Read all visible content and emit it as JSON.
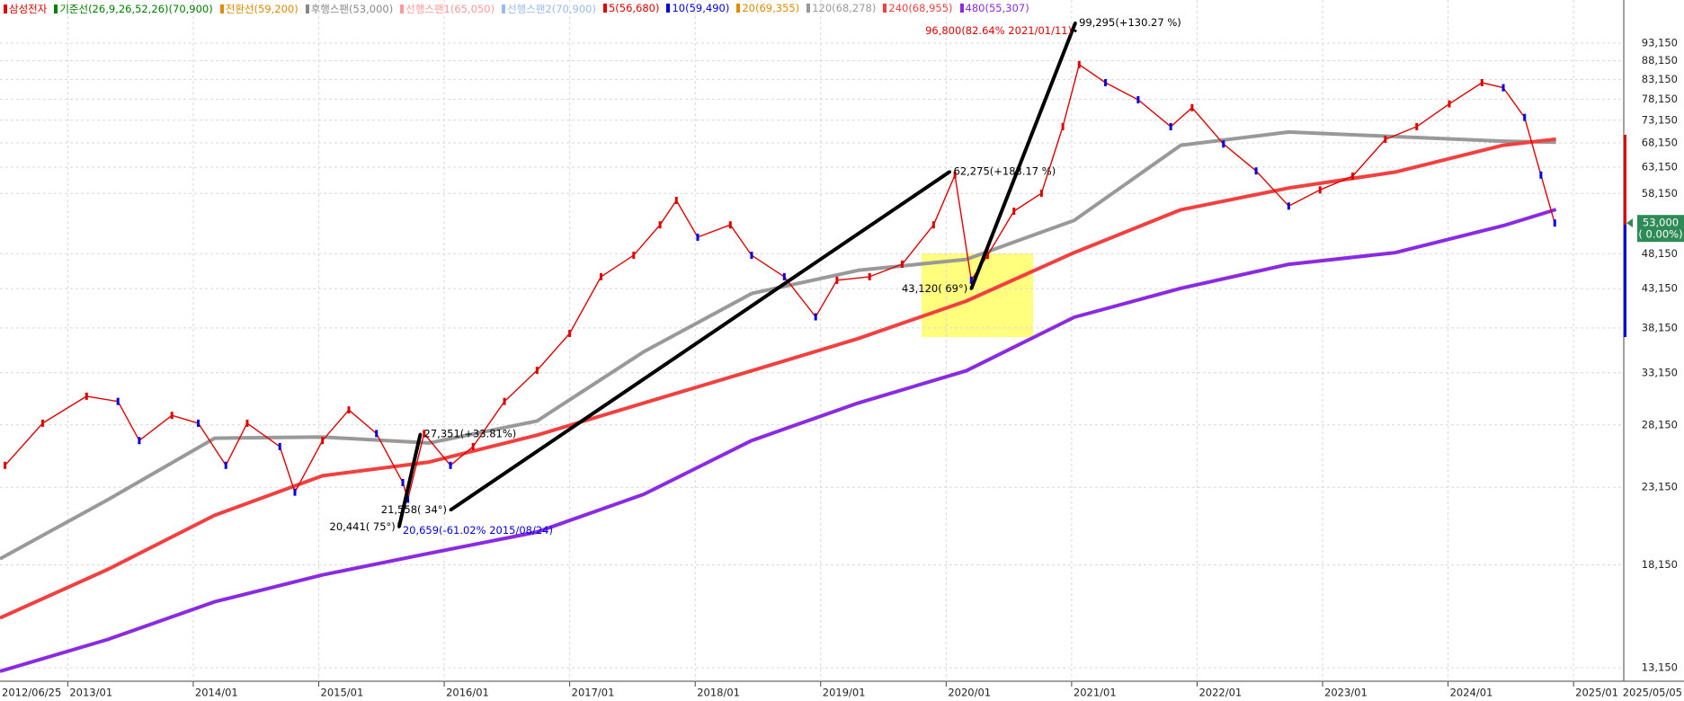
{
  "chart_data": {
    "type": "line",
    "log_scale": true,
    "grid": true,
    "xlim": [
      2012.46,
      2025.4
    ],
    "ylim": [
      12605,
      106640
    ],
    "start_label": "2012/06/25",
    "end_label": "2025/05/05",
    "xticks": [
      {
        "value": 2013,
        "label": "2013/01"
      },
      {
        "value": 2014,
        "label": "2014/01"
      },
      {
        "value": 2015,
        "label": "2015/01"
      },
      {
        "value": 2016,
        "label": "2016/01"
      },
      {
        "value": 2017,
        "label": "2017/01"
      },
      {
        "value": 2018,
        "label": "2018/01"
      },
      {
        "value": 2019,
        "label": "2019/01"
      },
      {
        "value": 2020,
        "label": "2020/01"
      },
      {
        "value": 2021,
        "label": "2021/01"
      },
      {
        "value": 2022,
        "label": "2022/01"
      },
      {
        "value": 2023,
        "label": "2023/01"
      },
      {
        "value": 2024,
        "label": "2024/01"
      },
      {
        "value": 2025,
        "label": "2025/01"
      }
    ],
    "yticks": [
      {
        "value": 13150,
        "label": "13,150"
      },
      {
        "value": 18150,
        "label": "18,150"
      },
      {
        "value": 23150,
        "label": "23,150"
      },
      {
        "value": 28150,
        "label": "28,150"
      },
      {
        "value": 33150,
        "label": "33,150"
      },
      {
        "value": 38150,
        "label": "38,150"
      },
      {
        "value": 43150,
        "label": "43,150"
      },
      {
        "value": 48150,
        "label": "48,150"
      },
      {
        "value": 58150,
        "label": "58,150"
      },
      {
        "value": 63150,
        "label": "63,150"
      },
      {
        "value": 68150,
        "label": "68,150"
      },
      {
        "value": 73150,
        "label": "73,150"
      },
      {
        "value": 78150,
        "label": "78,150"
      },
      {
        "value": 83150,
        "label": "83,150"
      },
      {
        "value": 88150,
        "label": "88,150"
      },
      {
        "value": 93150,
        "label": "93,150"
      }
    ],
    "current_price": {
      "value": 53000,
      "label": "53,000",
      "change": "( 0.00%)"
    },
    "series": [
      {
        "name": "삼성전자",
        "color": "#e00000",
        "x": [
          2012.5,
          2012.8,
          2013.15,
          2013.4,
          2013.57,
          2013.83,
          2014.04,
          2014.26,
          2014.43,
          2014.69,
          2014.81,
          2015.03,
          2015.24,
          2015.46,
          2015.67,
          2015.71,
          2015.84,
          2016.05,
          2016.23,
          2016.48,
          2016.74,
          2017.0,
          2017.25,
          2017.51,
          2017.72,
          2017.85,
          2018.02,
          2018.28,
          2018.45,
          2018.71,
          2018.96,
          2019.13,
          2019.39,
          2019.65,
          2019.9,
          2020.07,
          2020.2,
          2020.33,
          2020.54,
          2020.76,
          2020.93,
          2021.06,
          2021.27,
          2021.53,
          2021.79,
          2021.96,
          2022.21,
          2022.47,
          2022.73,
          2022.98,
          2023.24,
          2023.5,
          2023.75,
          2024.01,
          2024.27,
          2024.44,
          2024.61,
          2024.74,
          2024.85
        ],
        "values": [
          24800,
          28300,
          30800,
          30300,
          26800,
          29000,
          28300,
          24800,
          28300,
          26300,
          22800,
          26800,
          29500,
          27400,
          23500,
          22300,
          27400,
          24800,
          26300,
          30300,
          33400,
          37500,
          44800,
          47900,
          52700,
          56900,
          50700,
          52700,
          47900,
          44800,
          39500,
          44300,
          44800,
          46600,
          52700,
          61600,
          44300,
          47900,
          55000,
          58200,
          71700,
          87100,
          82300,
          78000,
          71700,
          76100,
          67900,
          62400,
          55900,
          58800,
          61400,
          68900,
          71700,
          77000,
          82300,
          81000,
          73800,
          61600,
          53000
        ]
      },
      {
        "name": "기준선(26,9,26,52,26)(70,900)",
        "color": "#008000"
      },
      {
        "name": "전환선(59,200)",
        "color": "#e08a00"
      },
      {
        "name": "후행스팬(53,000)",
        "color": "#888888"
      },
      {
        "name": "선행스팬1(65,050)",
        "color": "#ff9999"
      },
      {
        "name": "선행스팬2(70,900)",
        "color": "#99bbee"
      },
      {
        "name": "5(56,680)",
        "color": "#e00000"
      },
      {
        "name": "10(59,490)",
        "color": "#0000e0"
      },
      {
        "name": "20(69,355)",
        "color": "#e08a00"
      },
      {
        "name": "120(68,278)",
        "color": "#999999",
        "x": [
          2012.46,
          2013.32,
          2014.17,
          2015.03,
          2015.88,
          2016.74,
          2017.59,
          2018.45,
          2019.3,
          2020.16,
          2021.02,
          2021.87,
          2022.73,
          2023.58,
          2024.44,
          2024.86
        ],
        "values": [
          18500,
          22270,
          27000,
          27100,
          26600,
          28500,
          35400,
          42500,
          45700,
          47300,
          53450,
          67650,
          70500,
          69500,
          68500,
          68278
        ]
      },
      {
        "name": "240(68,955)",
        "color": "#f04040",
        "x": [
          2012.46,
          2013.32,
          2014.17,
          2015.03,
          2015.88,
          2016.74,
          2017.59,
          2018.45,
          2019.3,
          2020.16,
          2021.02,
          2021.87,
          2022.73,
          2023.58,
          2024.44,
          2024.86
        ],
        "values": [
          15370,
          17900,
          21200,
          24000,
          25060,
          27260,
          30150,
          33350,
          36900,
          41500,
          48300,
          55250,
          59150,
          62190,
          67650,
          68955
        ]
      },
      {
        "name": "480(55,307)",
        "color": "#8a2be2",
        "x": [
          2012.46,
          2013.32,
          2014.17,
          2015.03,
          2015.88,
          2016.74,
          2017.59,
          2018.45,
          2019.3,
          2020.16,
          2021.02,
          2021.87,
          2022.73,
          2023.58,
          2024.44,
          2024.86
        ],
        "values": [
          13000,
          14370,
          16170,
          17590,
          18820,
          20120,
          22650,
          26800,
          30150,
          33350,
          39450,
          43200,
          46570,
          48300,
          52560,
          55307
        ]
      }
    ],
    "annotations": [
      {
        "text": "99,295(+130.27 %)",
        "value": 99295,
        "x": 2021.03
      },
      {
        "text": "96,800(82.64% 2021/01/11)",
        "value": 96800,
        "x": 2021.03
      },
      {
        "text": "62,275(+183.17 %)",
        "value": 62275,
        "x": 2020.03
      },
      {
        "text": "43,120( 69°)",
        "value": 43120,
        "x": 2020.2
      },
      {
        "text": "27,351(+33.81%)",
        "value": 27351,
        "x": 2015.81
      },
      {
        "text": "21,558( 34°)",
        "value": 21558,
        "x": 2016.05
      },
      {
        "text": "20,441( 75°)",
        "value": 20441,
        "x": 2015.64
      },
      {
        "text": "20,659(-61.02% 2015/08/24)",
        "value": 20659,
        "x": 2015.64
      }
    ]
  }
}
